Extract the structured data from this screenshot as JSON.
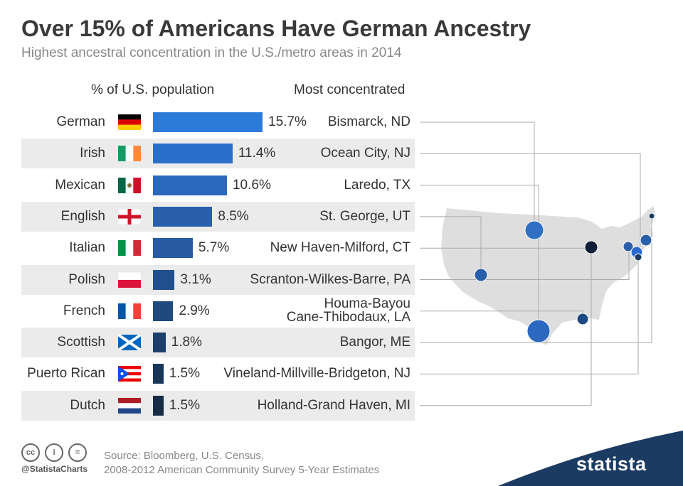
{
  "title": "Over 15% of Americans Have German Ancestry",
  "subtitle": "Highest ancestral concentration in the U.S./metro areas in 2014",
  "col_left": "% of U.S. population",
  "col_right": "Most concentrated",
  "chart_data": {
    "type": "bar",
    "orientation": "horizontal",
    "unit": "%",
    "categories": [
      "German",
      "Irish",
      "Mexican",
      "English",
      "Italian",
      "Polish",
      "French",
      "Scottish",
      "Puerto Rican",
      "Dutch"
    ],
    "values": [
      15.7,
      11.4,
      10.6,
      8.5,
      5.7,
      3.1,
      2.9,
      1.8,
      1.5,
      1.5
    ],
    "value_labels": [
      "15.7%",
      "11.4%",
      "10.6%",
      "8.5%",
      "5.7%",
      "3.1%",
      "2.9%",
      "1.8%",
      "1.5%",
      "1.5%"
    ],
    "most_concentrated": [
      "Bismarck, ND",
      "Ocean City, NJ",
      "Laredo, TX",
      "St. George, UT",
      "New Haven-Milford, CT",
      "Scranton-Wilkes-Barre, PA",
      "Houma-Bayou\nCane-Thibodaux, LA",
      "Bangor, ME",
      "Vineland-Millville-Bridgeton, NJ",
      "Holland-Grand Haven, MI"
    ],
    "flags": [
      "germany-flag-icon",
      "ireland-flag-icon",
      "mexico-flag-icon",
      "england-flag-icon",
      "italy-flag-icon",
      "poland-flag-icon",
      "france-flag-icon",
      "scotland-flag-icon",
      "puerto-rico-flag-icon",
      "netherlands-flag-icon"
    ],
    "bar_colors": [
      "#2b7bd8",
      "#2a6fca",
      "#2968bd",
      "#2860ad",
      "#275a9f",
      "#22508c",
      "#1f4a80",
      "#1b3e6b",
      "#18355a",
      "#162b45"
    ]
  },
  "footer": {
    "source_line1": "Source: Bloomberg, U.S. Census,",
    "source_line2": "2008-2012 American Community Survey 5-Year Estimates",
    "handle": "@StatistaCharts",
    "brand": "statista",
    "cc_icons": [
      "cc-icon",
      "by-icon",
      "equals-icon"
    ]
  }
}
